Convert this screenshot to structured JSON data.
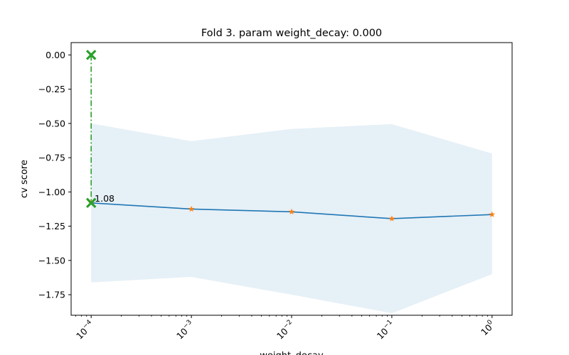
{
  "chart_data": {
    "type": "line",
    "title": "Fold 3. param weight_decay: 0.000",
    "xlabel": "weight_decay",
    "ylabel": "cv score",
    "xscale": "log",
    "x": [
      0.0001,
      0.001,
      0.01,
      0.1,
      1
    ],
    "x_tick_labels": [
      {
        "base": "10",
        "exp": "−4"
      },
      {
        "base": "10",
        "exp": "−3"
      },
      {
        "base": "10",
        "exp": "−2"
      },
      {
        "base": "10",
        "exp": "−1"
      },
      {
        "base": "10",
        "exp": "0"
      }
    ],
    "y_ticks": [
      0.0,
      -0.25,
      -0.5,
      -0.75,
      -1.0,
      -1.25,
      -1.5,
      -1.75
    ],
    "y_tick_labels": [
      "0.00",
      "−0.25",
      "−0.50",
      "−0.75",
      "−1.00",
      "−1.25",
      "−1.50",
      "−1.75"
    ],
    "ylim": [
      -1.9,
      0.09
    ],
    "grid": false,
    "series": [
      {
        "values": [
          -1.08,
          -1.125,
          -1.145,
          -1.195,
          -1.165
        ],
        "color": "#1f77b4",
        "marker_color": "#ff7f0e",
        "marker": "star"
      }
    ],
    "band": {
      "upper": [
        -0.5,
        -0.63,
        -0.54,
        -0.505,
        -0.72
      ],
      "lower": [
        -1.66,
        -1.62,
        -1.75,
        -1.885,
        -1.6
      ],
      "color": "#1f77b4",
      "opacity": 0.11
    },
    "best": {
      "x": 0.0001,
      "y": -1.08,
      "ideal_y": 0.0,
      "label": "1.08",
      "color": "#2ca02c"
    }
  }
}
